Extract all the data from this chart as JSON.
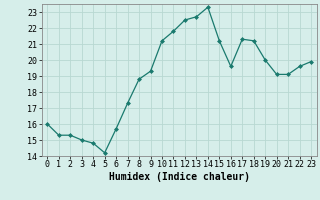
{
  "x": [
    0,
    1,
    2,
    3,
    4,
    5,
    6,
    7,
    8,
    9,
    10,
    11,
    12,
    13,
    14,
    15,
    16,
    17,
    18,
    19,
    20,
    21,
    22,
    23
  ],
  "y": [
    16.0,
    15.3,
    15.3,
    15.0,
    14.8,
    14.2,
    15.7,
    17.3,
    18.8,
    19.3,
    21.2,
    21.8,
    22.5,
    22.7,
    23.3,
    21.2,
    19.6,
    21.3,
    21.2,
    20.0,
    19.1,
    19.1,
    19.6,
    19.9
  ],
  "line_color": "#1a7a6e",
  "marker": "D",
  "marker_size": 2,
  "bg_color": "#d6eeea",
  "grid_color": "#b8d8d2",
  "xlabel": "Humidex (Indice chaleur)",
  "xlim": [
    -0.5,
    23.5
  ],
  "ylim": [
    14,
    23.5
  ],
  "yticks": [
    14,
    15,
    16,
    17,
    18,
    19,
    20,
    21,
    22,
    23
  ],
  "xticks": [
    0,
    1,
    2,
    3,
    4,
    5,
    6,
    7,
    8,
    9,
    10,
    11,
    12,
    13,
    14,
    15,
    16,
    17,
    18,
    19,
    20,
    21,
    22,
    23
  ],
  "tick_fontsize": 6,
  "xlabel_fontsize": 7,
  "font_family": "monospace"
}
